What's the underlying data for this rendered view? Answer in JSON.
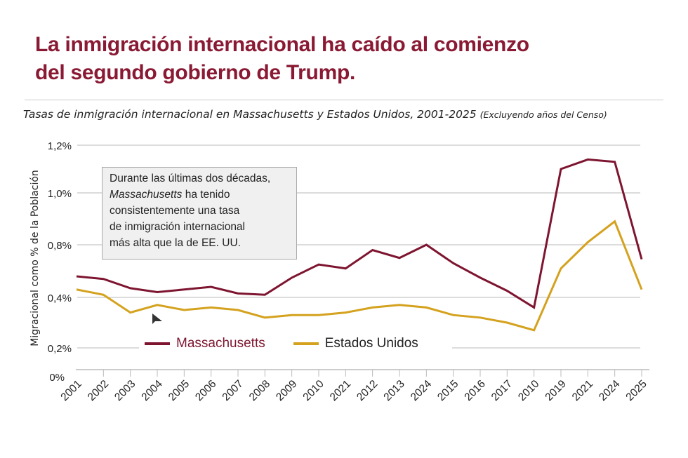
{
  "title_lines": [
    "La inmigración internacional ha caído al comienzo",
    "del segundo gobierno de Trump."
  ],
  "subtitle": "Tasas de inmigración internacional en Massachusetts y Estados Unidos, 2001-2025",
  "subtitle_note": "(Excluyendo años del Censo)",
  "annotation": {
    "line1": "Durante las últimas dos décadas,",
    "line2_italic": "Massachusetts",
    "line2_rest": " ha tenido",
    "line3": "consistentemente una tasa",
    "line4": "de inmigración internacional",
    "line5": "más alta que la de EE. UU."
  },
  "colors": {
    "title": "#8a1a34",
    "massachusetts": "#7e1530",
    "estados_unidos": "#d4a21e"
  },
  "chart_data": {
    "type": "line",
    "title": "La inmigración internacional ha caído al comienzo del segundo gobierno de Trump.",
    "ylabel": "Migracional como % de la Población",
    "xlabel": "",
    "categories": [
      "2001",
      "2002",
      "2003",
      "2004",
      "2005",
      "2006",
      "2007",
      "2008",
      "2009",
      "2010",
      "2021",
      "2012",
      "2013",
      "2024",
      "2015",
      "2016",
      "2017",
      "2010",
      "2019",
      "2021",
      "2024",
      "2025"
    ],
    "y_ticks": [
      {
        "value": 0,
        "label": "0%"
      },
      {
        "value": 0.2,
        "label": "0,2%"
      },
      {
        "value": 0.4,
        "label": "0,4%"
      },
      {
        "value": 0.8,
        "label": "0,8%"
      },
      {
        "value": 1.0,
        "label": "1,0%"
      },
      {
        "value": 1.2,
        "label": "1,2%"
      }
    ],
    "ylim": [
      0,
      1.2
    ],
    "grid": true,
    "legend_position": "bottom-inside",
    "series": [
      {
        "name": "Massachusetts",
        "color": "#7e1530",
        "values": [
          0.56,
          0.54,
          0.47,
          0.44,
          0.46,
          0.48,
          0.43,
          0.42,
          0.55,
          0.65,
          0.62,
          0.76,
          0.7,
          0.8,
          0.66,
          0.55,
          0.45,
          0.36,
          1.1,
          1.14,
          1.13,
          0.69
        ]
      },
      {
        "name": "Estados Unidos",
        "color": "#d4a21e",
        "values": [
          0.46,
          0.42,
          0.34,
          0.37,
          0.35,
          0.36,
          0.35,
          0.32,
          0.33,
          0.33,
          0.34,
          0.36,
          0.37,
          0.36,
          0.33,
          0.32,
          0.3,
          0.27,
          0.62,
          0.81,
          0.89,
          0.46
        ]
      }
    ]
  }
}
